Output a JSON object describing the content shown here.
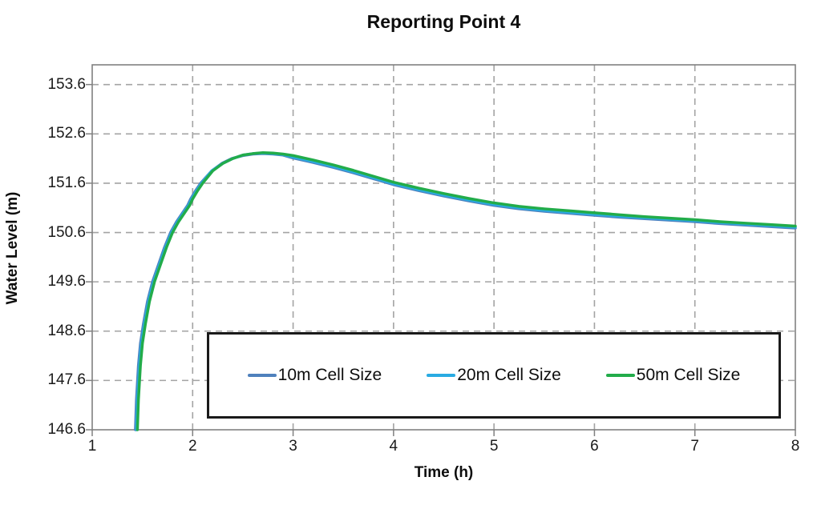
{
  "title": "Reporting Point 4",
  "chart_data": {
    "type": "line",
    "title": "Reporting Point 4",
    "xlabel": "Time (h)",
    "ylabel": "Water Level (m)",
    "xlim": [
      1,
      8
    ],
    "ylim": [
      146.6,
      154.0
    ],
    "x_ticks": [
      1,
      2,
      3,
      4,
      5,
      6,
      7,
      8
    ],
    "y_ticks": [
      146.6,
      147.6,
      148.6,
      149.6,
      150.6,
      151.6,
      152.6,
      153.6
    ],
    "grid": true,
    "grid_style": "dashed",
    "grid_color": "#a3a3a3",
    "axis_color": "#808080",
    "legend_position": "inside-bottom",
    "series": [
      {
        "name": "10m Cell Size",
        "color": "#4f81bd",
        "points": [
          [
            1.43,
            146.6
          ],
          [
            1.44,
            147.2
          ],
          [
            1.46,
            147.9
          ],
          [
            1.48,
            148.35
          ],
          [
            1.51,
            148.75
          ],
          [
            1.55,
            149.2
          ],
          [
            1.6,
            149.6
          ],
          [
            1.66,
            149.95
          ],
          [
            1.72,
            150.3
          ],
          [
            1.78,
            150.6
          ],
          [
            1.84,
            150.82
          ],
          [
            1.9,
            151.0
          ],
          [
            1.95,
            151.15
          ],
          [
            1.98,
            151.28
          ],
          [
            2.03,
            151.45
          ],
          [
            2.08,
            151.6
          ],
          [
            2.19,
            151.85
          ],
          [
            2.29,
            152.0
          ],
          [
            2.39,
            152.1
          ],
          [
            2.5,
            152.16
          ],
          [
            2.6,
            152.19
          ],
          [
            2.7,
            152.2
          ],
          [
            2.8,
            152.19
          ],
          [
            2.9,
            152.17
          ],
          [
            3.0,
            152.11
          ],
          [
            3.2,
            152.02
          ],
          [
            3.4,
            151.92
          ],
          [
            3.6,
            151.81
          ],
          [
            3.8,
            151.69
          ],
          [
            4.0,
            151.57
          ],
          [
            4.25,
            151.45
          ],
          [
            4.5,
            151.34
          ],
          [
            4.75,
            151.24
          ],
          [
            5.0,
            151.15
          ],
          [
            5.25,
            151.08
          ],
          [
            5.5,
            151.03
          ],
          [
            5.75,
            150.99
          ],
          [
            6.0,
            150.95
          ],
          [
            6.25,
            150.91
          ],
          [
            6.5,
            150.88
          ],
          [
            6.75,
            150.85
          ],
          [
            7.0,
            150.82
          ],
          [
            7.25,
            150.78
          ],
          [
            7.5,
            150.75
          ],
          [
            7.75,
            150.72
          ],
          [
            8.0,
            150.69
          ]
        ]
      },
      {
        "name": "20m Cell Size",
        "color": "#29abe2",
        "points": [
          [
            1.44,
            146.6
          ],
          [
            1.45,
            147.2
          ],
          [
            1.47,
            147.9
          ],
          [
            1.49,
            148.35
          ],
          [
            1.52,
            148.75
          ],
          [
            1.56,
            149.2
          ],
          [
            1.61,
            149.6
          ],
          [
            1.67,
            149.95
          ],
          [
            1.73,
            150.3
          ],
          [
            1.79,
            150.6
          ],
          [
            1.85,
            150.82
          ],
          [
            1.91,
            151.0
          ],
          [
            1.96,
            151.15
          ],
          [
            1.99,
            151.28
          ],
          [
            2.04,
            151.45
          ],
          [
            2.09,
            151.6
          ],
          [
            2.19,
            151.85
          ],
          [
            2.3,
            152.0
          ],
          [
            2.4,
            152.1
          ],
          [
            2.5,
            152.17
          ],
          [
            2.6,
            152.2
          ],
          [
            2.7,
            152.21
          ],
          [
            2.8,
            152.2
          ],
          [
            2.9,
            152.18
          ],
          [
            3.0,
            152.13
          ],
          [
            3.2,
            152.04
          ],
          [
            3.4,
            151.94
          ],
          [
            3.6,
            151.83
          ],
          [
            3.8,
            151.71
          ],
          [
            4.0,
            151.59
          ],
          [
            4.25,
            151.47
          ],
          [
            4.5,
            151.36
          ],
          [
            4.75,
            151.26
          ],
          [
            5.0,
            151.17
          ],
          [
            5.25,
            151.1
          ],
          [
            5.5,
            151.05
          ],
          [
            5.75,
            151.01
          ],
          [
            6.0,
            150.97
          ],
          [
            6.25,
            150.93
          ],
          [
            6.5,
            150.9
          ],
          [
            6.75,
            150.87
          ],
          [
            7.0,
            150.84
          ],
          [
            7.25,
            150.8
          ],
          [
            7.5,
            150.77
          ],
          [
            7.75,
            150.74
          ],
          [
            8.0,
            150.71
          ]
        ]
      },
      {
        "name": "50m Cell Size",
        "color": "#22ac4a",
        "points": [
          [
            1.45,
            146.6
          ],
          [
            1.46,
            147.2
          ],
          [
            1.48,
            147.9
          ],
          [
            1.5,
            148.35
          ],
          [
            1.53,
            148.75
          ],
          [
            1.57,
            149.2
          ],
          [
            1.62,
            149.6
          ],
          [
            1.68,
            149.95
          ],
          [
            1.74,
            150.3
          ],
          [
            1.8,
            150.6
          ],
          [
            1.86,
            150.82
          ],
          [
            1.92,
            151.0
          ],
          [
            1.97,
            151.15
          ],
          [
            2.0,
            151.28
          ],
          [
            2.05,
            151.45
          ],
          [
            2.1,
            151.6
          ],
          [
            2.2,
            151.85
          ],
          [
            2.3,
            152.0
          ],
          [
            2.4,
            152.1
          ],
          [
            2.5,
            152.17
          ],
          [
            2.6,
            152.2
          ],
          [
            2.7,
            152.22
          ],
          [
            2.8,
            152.21
          ],
          [
            2.9,
            152.19
          ],
          [
            3.0,
            152.16
          ],
          [
            3.2,
            152.07
          ],
          [
            3.4,
            151.97
          ],
          [
            3.6,
            151.86
          ],
          [
            3.8,
            151.74
          ],
          [
            4.0,
            151.62
          ],
          [
            4.25,
            151.5
          ],
          [
            4.5,
            151.39
          ],
          [
            4.75,
            151.29
          ],
          [
            5.0,
            151.2
          ],
          [
            5.25,
            151.13
          ],
          [
            5.5,
            151.08
          ],
          [
            5.75,
            151.04
          ],
          [
            6.0,
            151.0
          ],
          [
            6.25,
            150.96
          ],
          [
            6.5,
            150.92
          ],
          [
            6.75,
            150.89
          ],
          [
            7.0,
            150.86
          ],
          [
            7.25,
            150.82
          ],
          [
            7.5,
            150.79
          ],
          [
            7.75,
            150.76
          ],
          [
            8.0,
            150.73
          ]
        ]
      }
    ]
  }
}
